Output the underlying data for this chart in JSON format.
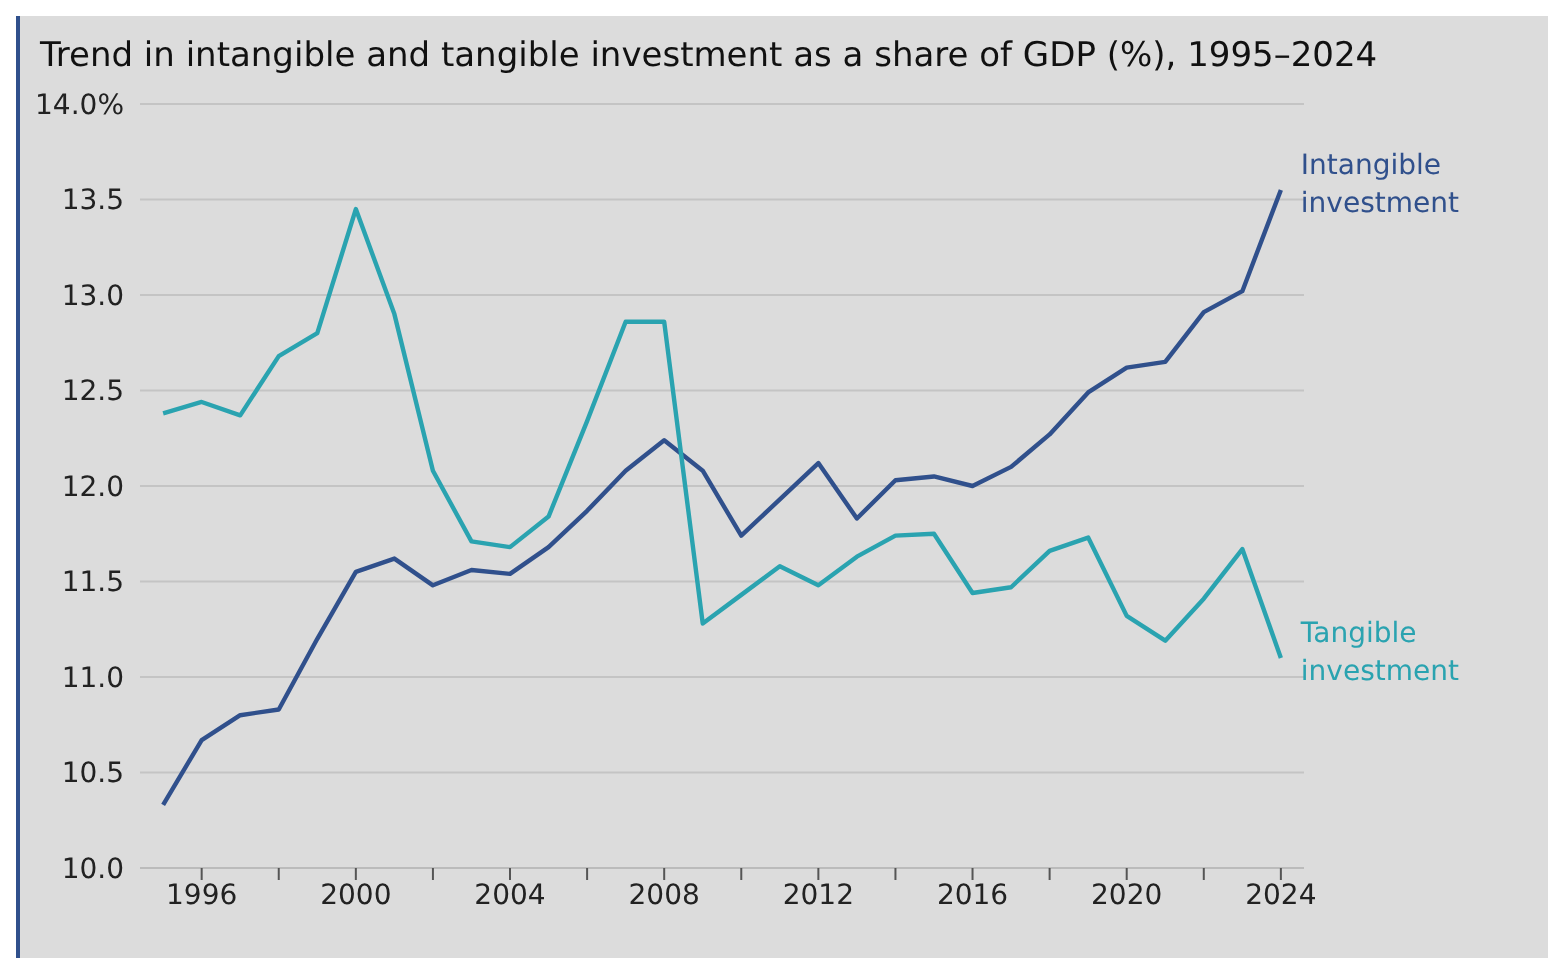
{
  "chart_data": {
    "type": "line",
    "title": "Trend in intangible and tangible investment as a share of GDP (%), 1995–2024",
    "x": [
      1995,
      1996,
      1997,
      1998,
      1999,
      2000,
      2001,
      2002,
      2003,
      2004,
      2005,
      2006,
      2007,
      2008,
      2009,
      2010,
      2011,
      2012,
      2013,
      2014,
      2015,
      2016,
      2017,
      2018,
      2019,
      2020,
      2021,
      2022,
      2023,
      2024
    ],
    "series": [
      {
        "name": "Intangible investment",
        "color": "#30508c",
        "values": [
          10.33,
          10.67,
          10.8,
          10.83,
          11.2,
          11.55,
          11.62,
          11.48,
          11.56,
          11.54,
          11.68,
          11.87,
          12.08,
          12.24,
          12.08,
          11.74,
          11.93,
          12.12,
          11.83,
          12.03,
          12.05,
          12.0,
          12.1,
          12.27,
          12.49,
          12.62,
          12.65,
          12.91,
          13.02,
          13.55
        ]
      },
      {
        "name": "Tangible investment",
        "color": "#2aa3b0",
        "values": [
          12.38,
          12.44,
          12.37,
          12.68,
          12.8,
          13.45,
          12.9,
          12.08,
          11.71,
          11.68,
          11.84,
          12.34,
          12.86,
          12.86,
          11.28,
          11.43,
          11.58,
          11.48,
          11.63,
          11.74,
          11.75,
          11.44,
          11.47,
          11.66,
          11.73,
          11.32,
          11.19,
          11.41,
          11.67,
          11.1
        ]
      }
    ],
    "xlim": [
      1994.4,
      2024.6
    ],
    "xticks": [
      1996,
      {
        "value": 1998,
        "label": null
      },
      2000,
      {
        "value": 2002,
        "label": null
      },
      2004,
      {
        "value": 2006,
        "label": null
      },
      2008,
      {
        "value": 2010,
        "label": null
      },
      2012,
      {
        "value": 2014,
        "label": null
      },
      2016,
      {
        "value": 2018,
        "label": null
      },
      2020,
      {
        "value": 2022,
        "label": null
      },
      2024
    ],
    "ylim": [
      10,
      14
    ],
    "yticks": [
      {
        "value": 10,
        "label": "10.0"
      },
      {
        "value": 10.5,
        "label": "10.5"
      },
      {
        "value": 11,
        "label": "11.0"
      },
      {
        "value": 11.5,
        "label": "11.5"
      },
      {
        "value": 12,
        "label": "12.0"
      },
      {
        "value": 12.5,
        "label": "12.5"
      },
      {
        "value": 13,
        "label": "13.0"
      },
      {
        "value": 13.5,
        "label": "13.5"
      },
      {
        "value": 14,
        "label": "14.0%"
      }
    ],
    "grid": "y",
    "legend": false,
    "marker": "none",
    "line_style": "solid"
  }
}
